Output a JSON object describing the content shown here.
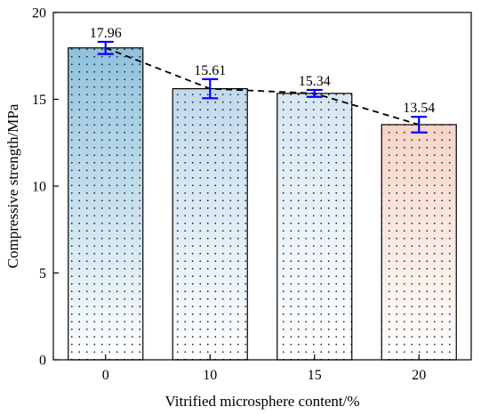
{
  "chart_data": {
    "type": "bar",
    "categories": [
      "0",
      "10",
      "15",
      "20"
    ],
    "values": [
      17.96,
      15.61,
      15.34,
      13.54
    ],
    "data_labels": [
      "17.96",
      "15.61",
      "15.34",
      "13.54"
    ],
    "errors": [
      0.35,
      0.55,
      0.2,
      0.45
    ],
    "xlabel": "Vitrified microsphere content/%",
    "ylabel": "Compressive strength/MPa",
    "ylim": [
      0,
      20
    ],
    "yticks": [
      0,
      5,
      10,
      15,
      20
    ],
    "trend_line": "dashed",
    "bar_top_colors": [
      "#8fc1dc",
      "#c0d9ec",
      "#d6e6f2",
      "#f6d4c6"
    ],
    "bar_bottom_color": "#ffffff",
    "error_bar_color": "#0000ff",
    "grid": false,
    "legend": "none"
  }
}
